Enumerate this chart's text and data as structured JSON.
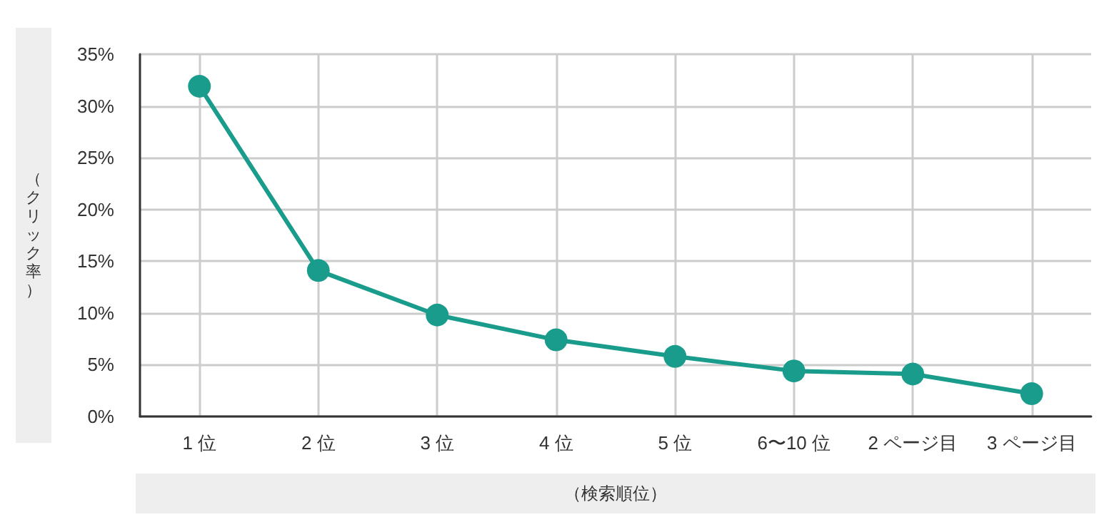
{
  "chart_data": {
    "type": "line",
    "xlabel": "（検索順位）",
    "ylabel": "（クリック率）",
    "categories": [
      "1 位",
      "2 位",
      "3 位",
      "4 位",
      "5 位",
      "6〜10 位",
      "2 ページ目",
      "3 ページ目"
    ],
    "series": [
      {
        "color": "#1a9c8c",
        "values": [
          31.9,
          14.1,
          9.8,
          7.4,
          5.8,
          4.4,
          4.1,
          2.2
        ]
      }
    ],
    "ylim": [
      0,
      35
    ],
    "yticks": [
      {
        "value": 0,
        "label": "0%"
      },
      {
        "value": 5,
        "label": "5%"
      },
      {
        "value": 10,
        "label": "10%"
      },
      {
        "value": 15,
        "label": "15%"
      },
      {
        "value": 20,
        "label": "20%"
      },
      {
        "value": 25,
        "label": "25%"
      },
      {
        "value": 30,
        "label": "30%"
      },
      {
        "value": 35,
        "label": "35%"
      }
    ],
    "grid": true,
    "marker": "circle",
    "line_style": "solid"
  }
}
